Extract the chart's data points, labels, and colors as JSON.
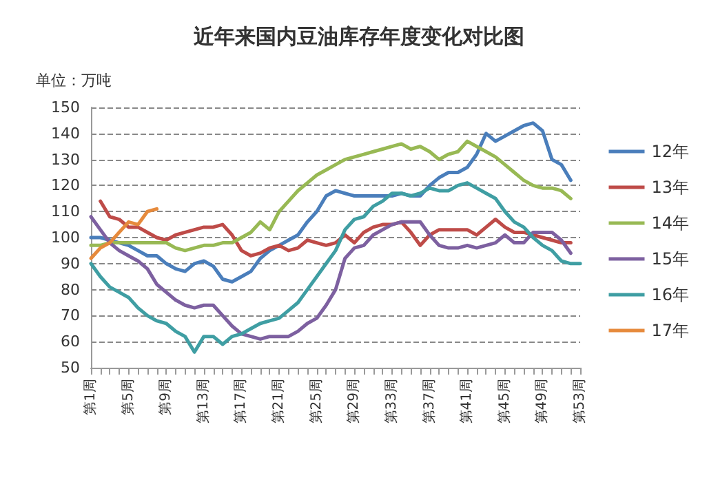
{
  "chart_data": {
    "type": "line",
    "title": "近年来国内豆油库存年度变化对比图",
    "ylabel": "单位：万吨",
    "categories": [
      "第1周",
      null,
      null,
      null,
      "第5周",
      null,
      null,
      null,
      "第9周",
      null,
      null,
      null,
      "第13周",
      null,
      null,
      null,
      "第17周",
      null,
      null,
      null,
      "第21周",
      null,
      null,
      null,
      "第25周",
      null,
      null,
      null,
      "第29周",
      null,
      null,
      null,
      "第33周",
      null,
      null,
      null,
      "第37周",
      null,
      null,
      null,
      "第41周",
      null,
      null,
      null,
      "第45周",
      null,
      null,
      null,
      "第49周",
      null,
      null,
      null,
      "第53周"
    ],
    "series": [
      {
        "name": "12年",
        "color": "#4a7ebb",
        "values": [
          100,
          100,
          99,
          98,
          97,
          95,
          93,
          93,
          90,
          88,
          87,
          90,
          91,
          89,
          84,
          83,
          85,
          87,
          92,
          95,
          97,
          99,
          101,
          106,
          110,
          116,
          118,
          117,
          116,
          116,
          116,
          116,
          116,
          117,
          116,
          116,
          120,
          123,
          125,
          125,
          127,
          132,
          140,
          137,
          139,
          141,
          143,
          144,
          141,
          130,
          128,
          122,
          null
        ]
      },
      {
        "name": "13年",
        "color": "#be4b48",
        "values": [
          null,
          114,
          108,
          107,
          104,
          104,
          102,
          100,
          99,
          101,
          102,
          103,
          104,
          104,
          105,
          101,
          95,
          93,
          94,
          96,
          97,
          95,
          96,
          99,
          98,
          97,
          98,
          101,
          98,
          102,
          104,
          105,
          105,
          106,
          102,
          97,
          101,
          103,
          103,
          103,
          103,
          101,
          104,
          107,
          104,
          102,
          102,
          101,
          100,
          99,
          98,
          98,
          null
        ]
      },
      {
        "name": "14年",
        "color": "#98b954",
        "values": [
          97,
          97,
          98,
          98,
          98,
          98,
          98,
          98,
          98,
          96,
          95,
          96,
          97,
          97,
          98,
          98,
          100,
          102,
          106,
          103,
          110,
          114,
          118,
          121,
          124,
          126,
          128,
          130,
          131,
          132,
          133,
          134,
          135,
          136,
          134,
          135,
          133,
          130,
          132,
          133,
          137,
          135,
          133,
          131,
          128,
          125,
          122,
          120,
          119,
          119,
          118,
          115,
          null
        ]
      },
      {
        "name": "15年",
        "color": "#7d60a0",
        "values": [
          108,
          103,
          98,
          95,
          93,
          91,
          88,
          82,
          79,
          76,
          74,
          73,
          74,
          74,
          70,
          66,
          63,
          62,
          61,
          62,
          62,
          62,
          64,
          67,
          69,
          74,
          80,
          92,
          96,
          97,
          101,
          103,
          105,
          106,
          106,
          106,
          101,
          97,
          96,
          96,
          97,
          96,
          97,
          98,
          101,
          98,
          98,
          102,
          102,
          102,
          99,
          94,
          null
        ]
      },
      {
        "name": "16年",
        "color": "#3f9ea3",
        "values": [
          90,
          85,
          81,
          79,
          77,
          73,
          70,
          68,
          67,
          64,
          62,
          56,
          62,
          62,
          59,
          62,
          63,
          65,
          67,
          68,
          69,
          72,
          75,
          80,
          85,
          90,
          95,
          103,
          107,
          108,
          112,
          114,
          117,
          117,
          116,
          117,
          119,
          118,
          118,
          120,
          121,
          119,
          117,
          115,
          110,
          106,
          104,
          100,
          97,
          95,
          91,
          90,
          90
        ]
      },
      {
        "name": "17年",
        "color": "#e68a3c",
        "values": [
          92,
          96,
          98,
          102,
          106,
          105,
          110,
          111,
          null,
          null,
          null,
          null,
          null,
          null,
          null,
          null,
          null,
          null,
          null,
          null,
          null,
          null,
          null,
          null,
          null,
          null,
          null,
          null,
          null,
          null,
          null,
          null,
          null,
          null,
          null,
          null,
          null,
          null,
          null,
          null,
          null,
          null,
          null,
          null,
          null,
          null,
          null,
          null,
          null,
          null,
          null,
          null,
          null
        ]
      }
    ],
    "ylim": [
      50,
      150
    ],
    "yticks": [
      50,
      60,
      70,
      80,
      90,
      100,
      110,
      120,
      130,
      140,
      150
    ],
    "grid": "y",
    "legend": "right",
    "marker": "none",
    "line_style": "solid"
  }
}
